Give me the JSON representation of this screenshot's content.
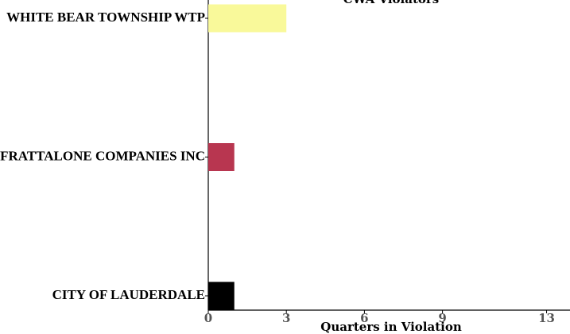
{
  "chart_data": {
    "type": "barh",
    "title": "CWA Violators",
    "x_label": "Quarters in Violation",
    "categories": [
      "WHITE BEAR TOWNSHIP WTP",
      "FRATTALONE COMPANIES INC",
      "CITY OF LAUDERDALE"
    ],
    "values": [
      3,
      1,
      1
    ],
    "colors": [
      "#f9f99a",
      "#b83650",
      "#000000"
    ],
    "xlim": [
      0,
      13.9
    ],
    "xticks": [
      0,
      3,
      6,
      9,
      13
    ]
  }
}
